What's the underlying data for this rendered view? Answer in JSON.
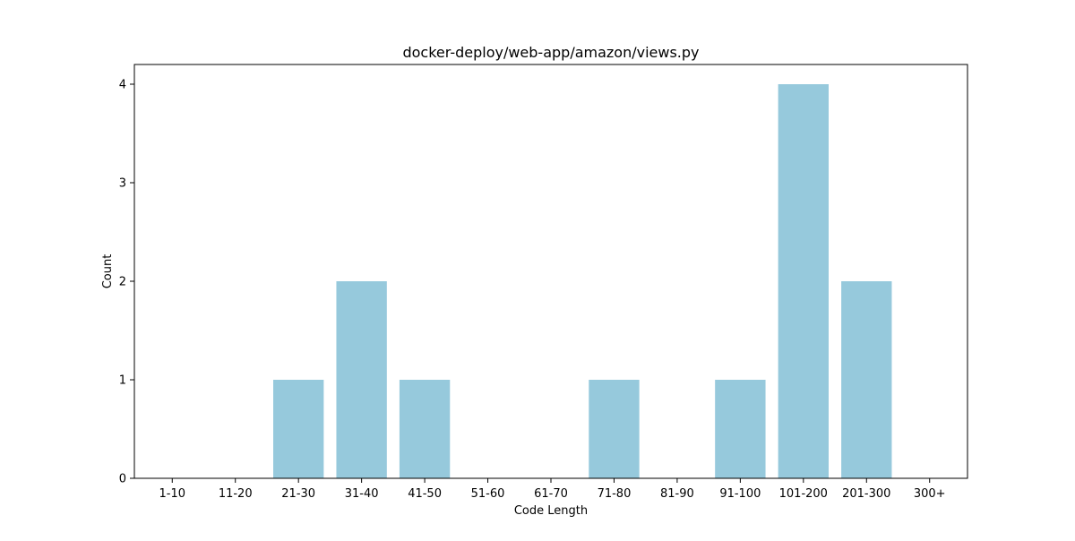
{
  "chart_data": {
    "type": "bar",
    "title": "docker-deploy/web-app/amazon/views.py",
    "xlabel": "Code Length",
    "ylabel": "Count",
    "categories": [
      "1-10",
      "11-20",
      "21-30",
      "31-40",
      "41-50",
      "51-60",
      "61-70",
      "71-80",
      "81-90",
      "91-100",
      "101-200",
      "201-300",
      "300+"
    ],
    "values": [
      0,
      0,
      1,
      2,
      1,
      0,
      0,
      1,
      0,
      1,
      4,
      2,
      0
    ],
    "yticks": [
      "0",
      "1",
      "2",
      "3",
      "4"
    ],
    "ylim": [
      0,
      4.2
    ],
    "grid": false,
    "bar_color": "#96c9dc"
  }
}
